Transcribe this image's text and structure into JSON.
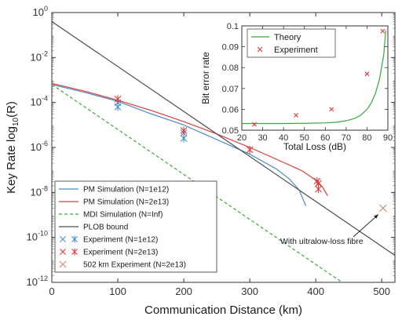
{
  "chart_data": [
    {
      "type": "line",
      "xlabel": "Communication Distance (km)",
      "ylabel": "Key Rate log10(R)",
      "xlim": [
        0,
        520
      ],
      "ylim_log10": [
        -12,
        0
      ],
      "scale_y": "log",
      "x_ticks": [
        0,
        100,
        200,
        300,
        400,
        500
      ],
      "y_ticks_exp": [
        0,
        -2,
        -4,
        -6,
        -8,
        -10,
        -12
      ],
      "grid": false,
      "legend_position": "bottom-left",
      "series": [
        {
          "name": "PM Simulation (N=1e12)",
          "kind": "line",
          "color": "#4a8cc7",
          "dash": "solid",
          "x": [
            0,
            50,
            100,
            150,
            200,
            250,
            300,
            340,
            360,
            375,
            385
          ],
          "log10_y": [
            -3.2,
            -3.55,
            -3.95,
            -4.5,
            -5.0,
            -5.65,
            -6.3,
            -6.95,
            -7.4,
            -7.9,
            -8.6
          ]
        },
        {
          "name": "PM Simulation (N=2e13)",
          "kind": "line",
          "color": "#e03a3a",
          "dash": "solid",
          "x": [
            0,
            50,
            100,
            150,
            200,
            250,
            300,
            350,
            380,
            400,
            410,
            418
          ],
          "log10_y": [
            -3.15,
            -3.5,
            -3.9,
            -4.35,
            -4.85,
            -5.4,
            -6.0,
            -6.65,
            -7.05,
            -7.45,
            -7.75,
            -8.15
          ]
        },
        {
          "name": "MDI Simulation (N=Inf)",
          "kind": "line",
          "color": "#3aa83a",
          "dash": "dashed",
          "x": [
            0,
            50,
            100,
            150,
            200,
            250,
            300,
            350,
            400,
            450
          ],
          "log10_y": [
            -3.2,
            -4.2,
            -5.2,
            -6.2,
            -7.2,
            -8.2,
            -9.2,
            -10.2,
            -11.2,
            -12.2
          ]
        },
        {
          "name": "PLOB bound",
          "kind": "line",
          "color": "#4d4d4d",
          "dash": "solid",
          "x": [
            0,
            520
          ],
          "log10_y": [
            -0.4,
            -10.8
          ]
        },
        {
          "name": "Experiment (N=1e12)",
          "kind": "scatter",
          "color": "#4a8cc7",
          "marker": "asterisk",
          "x": [
            100,
            100,
            200,
            200
          ],
          "log10_y": [
            -4.0,
            -4.2,
            -5.35,
            -5.6
          ]
        },
        {
          "name": "Experiment (N=2e13)",
          "kind": "scatter",
          "color": "#e03a3a",
          "marker": "asterisk",
          "x": [
            100,
            200,
            300,
            402,
            404,
            404
          ],
          "log10_y": [
            -3.85,
            -5.25,
            -6.1,
            -7.5,
            -7.6,
            -7.85
          ]
        },
        {
          "name": "502 km Experiment (N=2e13)",
          "kind": "scatter",
          "color": "#c88a6a",
          "marker": "x",
          "x": [
            502
          ],
          "log10_y": [
            -8.7
          ]
        }
      ],
      "annotations": [
        {
          "text": "With ultralow-loss fibre"
        }
      ]
    },
    {
      "type": "line",
      "xlabel": "Total Loss (dB)",
      "ylabel": "Bit error rate",
      "xlim": [
        20,
        90
      ],
      "ylim": [
        0.05,
        0.1
      ],
      "x_ticks": [
        20,
        30,
        40,
        50,
        60,
        70,
        80,
        90
      ],
      "y_ticks": [
        0.05,
        0.06,
        0.07,
        0.08,
        0.09,
        0.1
      ],
      "legend_position": "top-left",
      "series": [
        {
          "name": "Theory",
          "kind": "line",
          "color": "#3aa83a",
          "x": [
            20,
            30,
            40,
            50,
            60,
            65,
            70,
            74,
            77,
            80,
            82,
            84,
            86,
            88,
            89
          ],
          "y": [
            0.0532,
            0.0532,
            0.0532,
            0.0533,
            0.0535,
            0.0538,
            0.0545,
            0.0556,
            0.0572,
            0.06,
            0.063,
            0.0675,
            0.0745,
            0.086,
            0.098
          ]
        },
        {
          "name": "Experiment",
          "kind": "scatter",
          "color": "#e03a3a",
          "marker": "x",
          "x": [
            26,
            46,
            63,
            80,
            87.5
          ],
          "y": [
            0.0528,
            0.0572,
            0.06,
            0.077,
            0.0975
          ]
        }
      ]
    }
  ]
}
